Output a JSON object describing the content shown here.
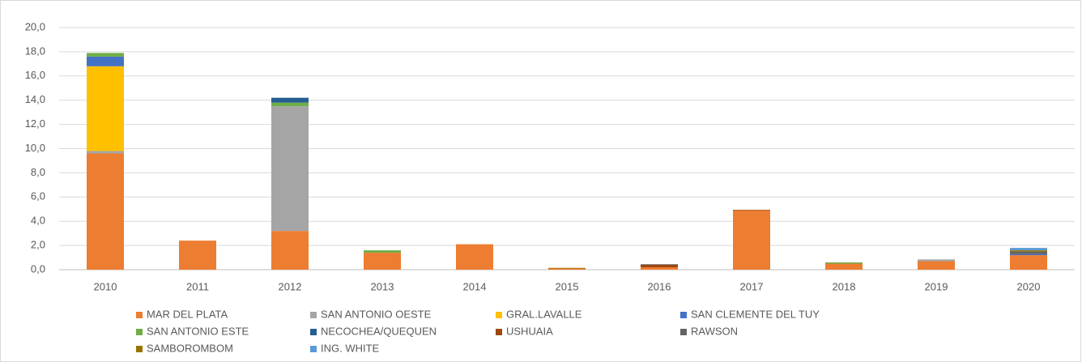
{
  "chart_data": {
    "type": "stacked_bar",
    "categories": [
      "2010",
      "2011",
      "2012",
      "2013",
      "2014",
      "2015",
      "2016",
      "2017",
      "2018",
      "2019",
      "2020"
    ],
    "series": [
      {
        "name": "MAR DEL PLATA",
        "color": "#ed7d31",
        "values": [
          9.6,
          2.4,
          3.2,
          1.4,
          2.1,
          0.1,
          0.2,
          4.9,
          0.5,
          0.7,
          1.2
        ]
      },
      {
        "name": "SAN ANTONIO OESTE",
        "color": "#a5a5a5",
        "values": [
          0.2,
          0,
          10.3,
          0,
          0,
          0,
          0,
          0,
          0,
          0.15,
          0
        ]
      },
      {
        "name": "GRAL.LAVALLE",
        "color": "#ffc000",
        "values": [
          7.0,
          0,
          0,
          0,
          0,
          0,
          0,
          0,
          0,
          0,
          0
        ]
      },
      {
        "name": "SAN CLEMENTE DEL TUY",
        "color": "#4472c4",
        "values": [
          0.8,
          0,
          0,
          0,
          0,
          0,
          0,
          0,
          0,
          0,
          0.1
        ]
      },
      {
        "name": "SAN ANTONIO ESTE",
        "color": "#70ad47",
        "values": [
          0.3,
          0,
          0.3,
          0.2,
          0,
          0,
          0,
          0,
          0.1,
          0,
          0
        ]
      },
      {
        "name": "NECOCHEA/QUEQUEN",
        "color": "#255e91",
        "values": [
          0,
          0,
          0.4,
          0,
          0,
          0,
          0,
          0,
          0,
          0,
          0
        ]
      },
      {
        "name": "USHUAIA",
        "color": "#9e480e",
        "values": [
          0,
          0,
          0,
          0,
          0,
          0,
          0.2,
          0.05,
          0,
          0,
          0
        ]
      },
      {
        "name": "RAWSON",
        "color": "#636363",
        "values": [
          0,
          0,
          0,
          0,
          0,
          0,
          0.05,
          0,
          0,
          0,
          0.2
        ]
      },
      {
        "name": "SAMBOROMBOM",
        "color": "#997300",
        "values": [
          0,
          0,
          0,
          0,
          0,
          0.05,
          0,
          0,
          0,
          0,
          0.1
        ]
      },
      {
        "name": "ING. WHITE",
        "color": "#5b9bd5",
        "values": [
          0,
          0,
          0,
          0,
          0,
          0,
          0,
          0,
          0,
          0,
          0.2
        ]
      }
    ],
    "ylim": [
      0,
      20
    ],
    "yticks": [
      {
        "value": 0,
        "label": "0,0"
      },
      {
        "value": 2,
        "label": "2,0"
      },
      {
        "value": 4,
        "label": "4,0"
      },
      {
        "value": 6,
        "label": "6,0"
      },
      {
        "value": 8,
        "label": "8,0"
      },
      {
        "value": 10,
        "label": "10,0"
      },
      {
        "value": 12,
        "label": "12,0"
      },
      {
        "value": 14,
        "label": "14,0"
      },
      {
        "value": 16,
        "label": "16,0"
      },
      {
        "value": 18,
        "label": "18,0"
      },
      {
        "value": 20,
        "label": "20,0"
      }
    ],
    "grid": true,
    "legend": "bottom"
  }
}
